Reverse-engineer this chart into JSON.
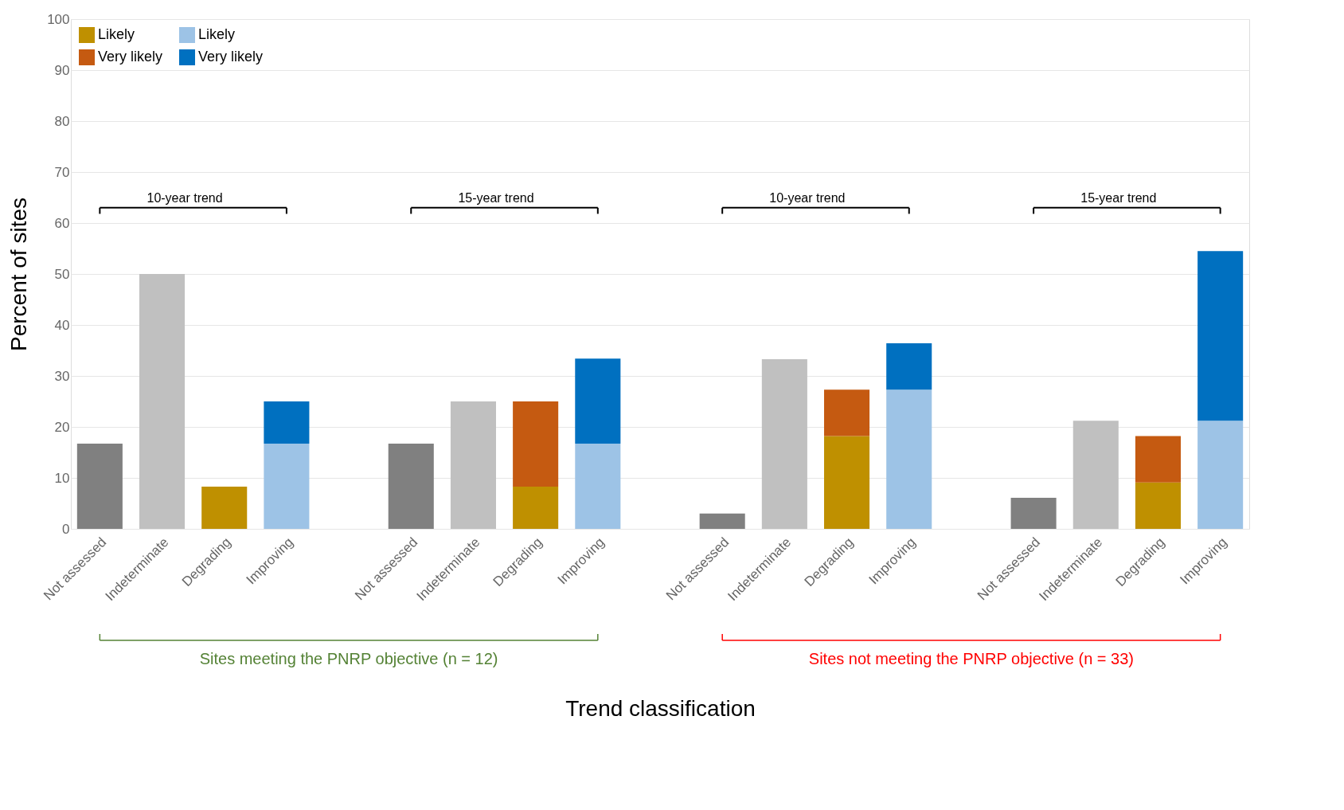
{
  "chart_data": {
    "type": "bar",
    "stacked": true,
    "xlabel": "Trend classification",
    "ylabel": "Percent of sites",
    "categories": [
      "Not assessed",
      "Indeterminate",
      "Degrading",
      "Improving",
      null,
      "Not assessed",
      "Indeterminate",
      "Degrading",
      "Improving",
      null,
      "Not assessed",
      "Indeterminate",
      "Degrading",
      "Improving",
      null,
      "Not assessed",
      "Indeterminate",
      "Degrading",
      "Improving"
    ],
    "series": [
      {
        "color": "#808080",
        "values": [
          16.7,
          null,
          null,
          null,
          null,
          16.7,
          null,
          null,
          null,
          null,
          3.0,
          null,
          null,
          null,
          null,
          6.1,
          null,
          null,
          null
        ]
      },
      {
        "color": "#c0c0c0",
        "values": [
          null,
          50,
          null,
          null,
          null,
          null,
          25,
          null,
          null,
          null,
          null,
          33.3,
          null,
          null,
          null,
          null,
          21.2,
          null,
          null
        ]
      },
      {
        "name": "Likely",
        "color": "#bf9000",
        "values": [
          null,
          null,
          8.3,
          null,
          null,
          null,
          null,
          8.3,
          null,
          null,
          null,
          null,
          18.2,
          null,
          null,
          null,
          null,
          9.1,
          null
        ]
      },
      {
        "name": "Very likely",
        "color": "#c55a11",
        "values": [
          null,
          null,
          null,
          null,
          null,
          null,
          null,
          16.7,
          null,
          null,
          null,
          null,
          9.1,
          null,
          null,
          null,
          null,
          9.1,
          null
        ]
      },
      {
        "name": "Likely",
        "color": "#9dc3e6",
        "values": [
          null,
          null,
          null,
          16.7,
          null,
          null,
          null,
          null,
          16.7,
          null,
          null,
          null,
          null,
          27.3,
          null,
          null,
          null,
          null,
          21.2
        ]
      },
      {
        "name": "Very likely",
        "color": "#0070c0",
        "values": [
          null,
          null,
          null,
          8.3,
          null,
          null,
          null,
          null,
          16.7,
          null,
          null,
          null,
          null,
          9.1,
          null,
          null,
          null,
          null,
          33.3
        ]
      }
    ],
    "ylim": [
      0,
      100
    ],
    "yticks": [
      0,
      10,
      20,
      30,
      40,
      50,
      60,
      70,
      80,
      90,
      100
    ],
    "grid": "y",
    "legend": "top left",
    "annotations": [
      "10-year trend",
      "15-year trend",
      "10-year trend",
      "15-year trend",
      "Sites meeting the PNRP objective (n = 12)",
      "Sites not meeting the PNRP objective (n = 33)"
    ]
  }
}
